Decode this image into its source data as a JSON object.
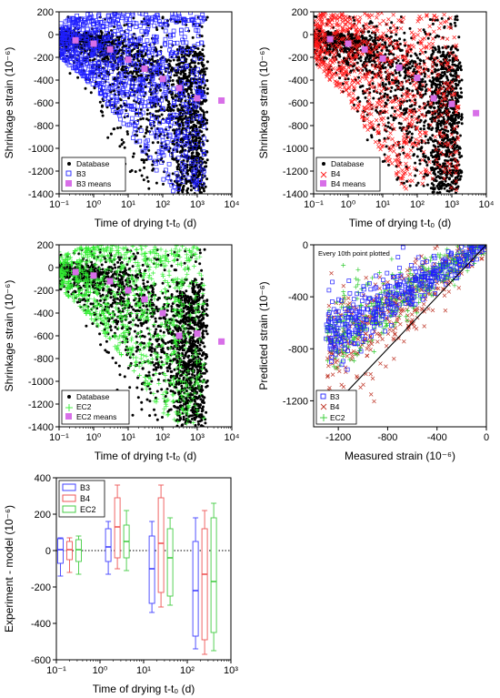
{
  "chart_data": [
    {
      "id": "a",
      "type": "scatter",
      "xlabel": "Time of drying t-t₀ (d)",
      "ylabel": "Shrinkage strain (10⁻⁶)",
      "x_scale": "log",
      "xlim": [
        0.1,
        10000
      ],
      "ylim": [
        -1400,
        200
      ],
      "x_ticks": [
        "10⁻¹",
        "10⁰",
        "10¹",
        "10²",
        "10³",
        "10⁴"
      ],
      "y_ticks": [
        "200",
        "0",
        "-200",
        "-400",
        "-600",
        "-800",
        "-1000",
        "-1200",
        "-1400"
      ],
      "legend": {
        "position": "bottom-left",
        "entries": [
          "Database",
          "B3",
          "B3 means"
        ]
      },
      "series": [
        {
          "name": "Database",
          "marker": "dot",
          "color": "#000000"
        },
        {
          "name": "B3",
          "marker": "open-square",
          "color": "#1f1fff"
        },
        {
          "name": "B3 means",
          "marker": "filled-square",
          "color": "#d86fe8",
          "x": [
            0.3,
            1.0,
            3.0,
            10,
            30,
            100,
            300,
            1000,
            5000
          ],
          "y": [
            -50,
            -80,
            -130,
            -220,
            -300,
            -390,
            -470,
            -560,
            -580
          ]
        }
      ]
    },
    {
      "id": "b",
      "type": "scatter",
      "xlabel": "Time of drying t-t₀ (d)",
      "ylabel": "Shrinkage strain (10⁻⁶)",
      "x_scale": "log",
      "xlim": [
        0.1,
        10000
      ],
      "ylim": [
        -1400,
        200
      ],
      "x_ticks": [
        "10⁻¹",
        "10⁰",
        "10¹",
        "10²",
        "10³",
        "10⁴"
      ],
      "y_ticks": [
        "200",
        "0",
        "-200",
        "-400",
        "-600",
        "-800",
        "-1000",
        "-1200",
        "-1400"
      ],
      "legend": {
        "position": "bottom-left",
        "entries": [
          "Database",
          "B4",
          "B4 means"
        ]
      },
      "series": [
        {
          "name": "Database",
          "marker": "dot",
          "color": "#000000"
        },
        {
          "name": "B4",
          "marker": "cross",
          "color": "#ff1a1a"
        },
        {
          "name": "B4 means",
          "marker": "filled-square",
          "color": "#d86fe8",
          "x": [
            0.3,
            1.0,
            3.0,
            10,
            30,
            100,
            300,
            1000,
            5000
          ],
          "y": [
            -40,
            -80,
            -130,
            -210,
            -290,
            -380,
            -560,
            -610,
            -690
          ]
        }
      ]
    },
    {
      "id": "c",
      "type": "scatter",
      "xlabel": "Time of drying t-t₀ (d)",
      "ylabel": "Shrinkage strain (10⁻⁶)",
      "x_scale": "log",
      "xlim": [
        0.1,
        10000
      ],
      "ylim": [
        -1400,
        200
      ],
      "x_ticks": [
        "10⁻¹",
        "10⁰",
        "10¹",
        "10²",
        "10³",
        "10⁴"
      ],
      "y_ticks": [
        "200",
        "0",
        "-200",
        "-400",
        "-600",
        "-800",
        "-1000",
        "-1200",
        "-1400"
      ],
      "legend": {
        "position": "bottom-left",
        "entries": [
          "Database",
          "EC2",
          "EC2 means"
        ]
      },
      "series": [
        {
          "name": "Database",
          "marker": "dot",
          "color": "#000000"
        },
        {
          "name": "EC2",
          "marker": "plus",
          "color": "#33ee33"
        },
        {
          "name": "EC2 means",
          "marker": "filled-square",
          "color": "#d86fe8",
          "x": [
            0.3,
            1.0,
            3.0,
            10,
            30,
            100,
            300,
            1000,
            5000
          ],
          "y": [
            -40,
            -70,
            -120,
            -200,
            -280,
            -400,
            -600,
            -580,
            -650
          ]
        }
      ]
    },
    {
      "id": "d",
      "type": "scatter",
      "annotation": "Every 10th point plotted",
      "xlabel": "Measured strain (10⁻⁶)",
      "ylabel": "Predicted strain (10⁻⁶)",
      "xlim": [
        -1400,
        0
      ],
      "ylim": [
        -1400,
        0
      ],
      "x_ticks": [
        "-1200",
        "-800",
        "-400",
        "0"
      ],
      "y_ticks": [
        "0",
        "-400",
        "-800",
        "-1200"
      ],
      "legend": {
        "position": "bottom-left",
        "entries": [
          "B3",
          "B4",
          "EC2"
        ]
      },
      "series": [
        {
          "name": "B3",
          "marker": "open-square",
          "color": "#1f1fff"
        },
        {
          "name": "B4",
          "marker": "cross",
          "color": "#c0392b"
        },
        {
          "name": "EC2",
          "marker": "plus",
          "color": "#33cc33"
        }
      ],
      "identity_line": true
    },
    {
      "id": "e",
      "type": "boxplot",
      "xlabel": "Time of drying t-t₀ (d)",
      "ylabel": "Experiment - model (10⁻⁶)",
      "x_scale": "log",
      "xlim": [
        0.1,
        1000
      ],
      "ylim": [
        -600,
        400
      ],
      "x_ticks": [
        "10⁻¹",
        "10⁰",
        "10¹",
        "10²",
        "10³"
      ],
      "y_ticks": [
        "400",
        "200",
        "0",
        "-200",
        "-400",
        "-600"
      ],
      "legend": {
        "position": "top-left",
        "entries": [
          "B3",
          "B4",
          "EC2"
        ]
      },
      "groups": [
        {
          "x": 0.2,
          "boxes": [
            {
              "series": "B3",
              "color": "#4040ff",
              "whisker_low": -140,
              "q1": -70,
              "median": 5,
              "q3": 65,
              "whisker_high": 70
            },
            {
              "series": "B4",
              "color": "#ee5555",
              "whisker_low": -120,
              "q1": -50,
              "median": 5,
              "q3": 50,
              "whisker_high": 70
            },
            {
              "series": "EC2",
              "color": "#44cc44",
              "whisker_low": -130,
              "q1": -60,
              "median": 5,
              "q3": 60,
              "whisker_high": 80
            }
          ]
        },
        {
          "x": 2.5,
          "boxes": [
            {
              "series": "B3",
              "color": "#4040ff",
              "whisker_low": -130,
              "q1": -60,
              "median": 20,
              "q3": 120,
              "whisker_high": 160
            },
            {
              "series": "B4",
              "color": "#ee5555",
              "whisker_low": -100,
              "q1": -40,
              "median": 130,
              "q3": 290,
              "whisker_high": 360
            },
            {
              "series": "EC2",
              "color": "#44cc44",
              "whisker_low": -110,
              "q1": -40,
              "median": 50,
              "q3": 140,
              "whisker_high": 220
            }
          ]
        },
        {
          "x": 25,
          "boxes": [
            {
              "series": "B3",
              "color": "#4040ff",
              "whisker_low": -340,
              "q1": -290,
              "median": -100,
              "q3": 80,
              "whisker_high": 160
            },
            {
              "series": "B4",
              "color": "#ee5555",
              "whisker_low": -310,
              "q1": -230,
              "median": 40,
              "q3": 290,
              "whisker_high": 360
            },
            {
              "series": "EC2",
              "color": "#44cc44",
              "whisker_low": -300,
              "q1": -250,
              "median": -40,
              "q3": 120,
              "whisker_high": 180
            }
          ]
        },
        {
          "x": 250,
          "boxes": [
            {
              "series": "B3",
              "color": "#4040ff",
              "whisker_low": -540,
              "q1": -470,
              "median": -220,
              "q3": 50,
              "whisker_high": 180
            },
            {
              "series": "B4",
              "color": "#ee5555",
              "whisker_low": -570,
              "q1": -490,
              "median": -130,
              "q3": 120,
              "whisker_high": 220
            },
            {
              "series": "EC2",
              "color": "#44cc44",
              "whisker_low": -550,
              "q1": -450,
              "median": -170,
              "q3": 180,
              "whisker_high": 260
            }
          ]
        }
      ],
      "reference_line": {
        "y": 0,
        "style": "dotted"
      }
    }
  ]
}
